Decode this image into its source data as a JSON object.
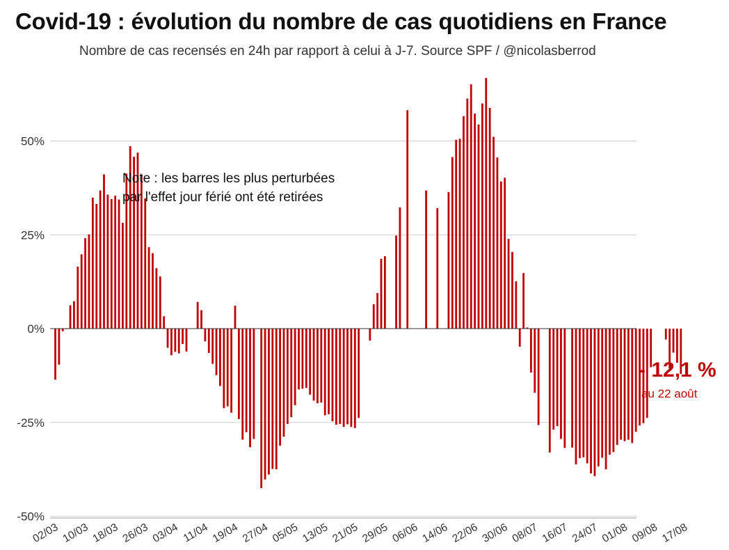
{
  "chart_data": {
    "type": "bar",
    "title": "Covid-19 : évolution du nombre de cas quotidiens en France",
    "subtitle": "Nombre de cas recensés en 24h par rapport à celui à J-7. Source SPF / @nicolasberrod",
    "xlabel": "",
    "ylabel": "",
    "ylim": [
      -50,
      70
    ],
    "yticks": [
      50,
      25,
      0,
      -25,
      -50
    ],
    "ytick_labels": [
      "50%",
      "25%",
      "0%",
      "-25%",
      "-50%"
    ],
    "grid": "horizontal",
    "x_tick_labels": [
      "02/03",
      "10/03",
      "18/03",
      "26/03",
      "03/04",
      "11/04",
      "19/04",
      "27/04",
      "05/05",
      "13/05",
      "21/05",
      "29/05",
      "06/06",
      "14/06",
      "22/06",
      "30/06",
      "08/07",
      "16/07",
      "24/07",
      "01/08",
      "09/08",
      "17/08"
    ],
    "bar_color": "#c00000",
    "series": [
      {
        "values": [
          -13.6,
          -9.6,
          -0.7,
          0,
          6.2,
          7.3,
          16.5,
          19.8,
          24.1,
          25.1,
          34.9,
          33.2,
          36.8,
          41.1,
          35.7,
          34.5,
          35.4,
          34.4,
          28.2,
          41.3,
          48.6,
          45.8,
          46.9,
          41.0,
          34.7,
          21.7,
          20.1,
          16.1,
          13.9,
          3.3,
          -5.1,
          -7.1,
          -6.2,
          -6.6,
          -4.1,
          -6.1,
          null,
          null,
          7.1,
          4.9,
          -3.4,
          -6.5,
          -9.4,
          -12.4,
          -15.3,
          -21.2,
          -20.7,
          -22.4,
          6.1,
          -24.1,
          -29.6,
          -27.6,
          -31.6,
          -29.4,
          null,
          -42.5,
          -40.2,
          -38.9,
          -37.4,
          -37.5,
          -31.2,
          -28.8,
          -25.4,
          -23.6,
          -20.4,
          -16.2,
          -16.0,
          -15.8,
          -17.6,
          -19.2,
          -19.9,
          -19.7,
          -23.1,
          -22.8,
          -24.7,
          -25.6,
          -25.4,
          -26.2,
          -25.5,
          -26.2,
          -26.5,
          -23.8,
          null,
          null,
          -3.2,
          6.5,
          9.5,
          18.6,
          19.3,
          null,
          null,
          24.8,
          32.3,
          null,
          58.2,
          null,
          null,
          null,
          null,
          36.8,
          null,
          null,
          32.1,
          null,
          null,
          36.4,
          45.7,
          50.3,
          50.6,
          56.6,
          61.3,
          65.1,
          57.3,
          54.4,
          60.0,
          66.8,
          58.8,
          51.1,
          45.6,
          39.2,
          40.2,
          23.9,
          20.4,
          12.6,
          -4.8,
          14.8,
          0.3,
          -11.7,
          -17.1,
          -25.7,
          null,
          null,
          -33.0,
          -26.9,
          -26.0,
          -29.4,
          -31.8,
          null,
          -31.7,
          -36.2,
          -34.5,
          -34.3,
          -35.9,
          -38.6,
          -39.3,
          -36.7,
          -34.4,
          -37.5,
          -33.6,
          -32.9,
          -31.0,
          -29.6,
          -30.0,
          -29.6,
          -30.5,
          -27.5,
          -25.8,
          -25.2,
          -23.8,
          -10.3,
          null,
          null,
          null,
          -2.9,
          -10.6,
          -6.4,
          -9.1,
          -12.1
        ]
      }
    ],
    "first_date": "02/03",
    "last_value_label": "- 12,1 %",
    "last_value_date": "au 22 août"
  },
  "note": "Note : les barres les plus perturbées\npar l'effet jour férié ont été retirées"
}
